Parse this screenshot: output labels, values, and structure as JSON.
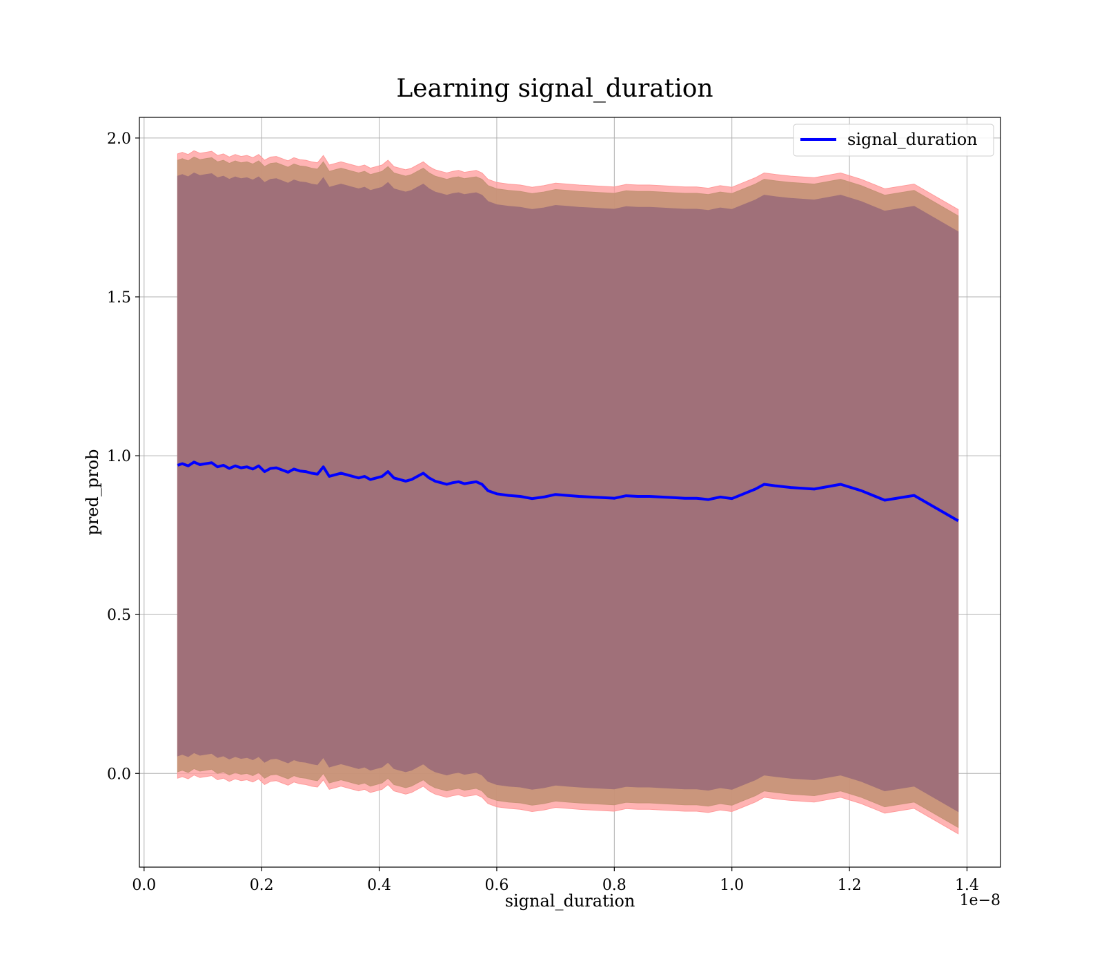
{
  "chart_data": {
    "type": "line",
    "title": "Learning signal_duration",
    "xlabel": "signal_duration",
    "ylabel": "pred_prob",
    "x_offset_label": "1e−8",
    "xlim": [
      -0.008,
      1.457
    ],
    "ylim": [
      -0.295,
      2.065
    ],
    "x_ticks": [
      0.0,
      0.2,
      0.4,
      0.6,
      0.8,
      1.0,
      1.2,
      1.4
    ],
    "x_tick_labels": [
      "0.0",
      "0.2",
      "0.4",
      "0.6",
      "0.8",
      "1.0",
      "1.2",
      "1.4"
    ],
    "y_ticks": [
      0.0,
      0.5,
      1.0,
      1.5,
      2.0
    ],
    "y_tick_labels": [
      "0.0",
      "0.5",
      "1.0",
      "1.5",
      "2.0"
    ],
    "grid": true,
    "legend_position": "top-right",
    "colors": {
      "line": "#0000ff",
      "outer_band": "#ff9a9a",
      "middle_band": "#c49275",
      "inner_band": "#a07079",
      "grid": "#b0b0b0",
      "axes": "#000000"
    },
    "series": [
      {
        "name": "signal_duration",
        "x": [
          0.057,
          0.065,
          0.075,
          0.085,
          0.095,
          0.105,
          0.115,
          0.125,
          0.135,
          0.145,
          0.155,
          0.165,
          0.175,
          0.185,
          0.195,
          0.205,
          0.215,
          0.225,
          0.235,
          0.245,
          0.255,
          0.265,
          0.275,
          0.285,
          0.295,
          0.305,
          0.315,
          0.325,
          0.335,
          0.345,
          0.355,
          0.365,
          0.375,
          0.385,
          0.395,
          0.405,
          0.415,
          0.425,
          0.435,
          0.445,
          0.455,
          0.465,
          0.475,
          0.485,
          0.495,
          0.505,
          0.515,
          0.525,
          0.535,
          0.545,
          0.555,
          0.565,
          0.575,
          0.585,
          0.6,
          0.62,
          0.64,
          0.66,
          0.68,
          0.7,
          0.72,
          0.74,
          0.76,
          0.78,
          0.8,
          0.82,
          0.84,
          0.86,
          0.88,
          0.9,
          0.92,
          0.94,
          0.96,
          0.98,
          1.0,
          1.02,
          1.04,
          1.055,
          1.075,
          1.1,
          1.14,
          1.185,
          1.22,
          1.26,
          1.31,
          1.385
        ],
        "values": [
          0.97,
          0.975,
          0.968,
          0.98,
          0.972,
          0.975,
          0.978,
          0.965,
          0.97,
          0.96,
          0.968,
          0.962,
          0.965,
          0.958,
          0.968,
          0.95,
          0.96,
          0.962,
          0.955,
          0.948,
          0.958,
          0.952,
          0.95,
          0.945,
          0.942,
          0.965,
          0.935,
          0.94,
          0.945,
          0.94,
          0.935,
          0.93,
          0.935,
          0.925,
          0.93,
          0.935,
          0.95,
          0.93,
          0.925,
          0.92,
          0.925,
          0.935,
          0.945,
          0.93,
          0.92,
          0.915,
          0.91,
          0.915,
          0.918,
          0.912,
          0.915,
          0.918,
          0.91,
          0.89,
          0.88,
          0.875,
          0.872,
          0.865,
          0.87,
          0.878,
          0.875,
          0.872,
          0.87,
          0.868,
          0.866,
          0.874,
          0.872,
          0.872,
          0.87,
          0.868,
          0.866,
          0.866,
          0.862,
          0.87,
          0.865,
          0.88,
          0.895,
          0.91,
          0.905,
          0.9,
          0.895,
          0.91,
          0.89,
          0.86,
          0.875,
          0.795
        ]
      }
    ],
    "bands": [
      {
        "lower_offset": -0.985,
        "upper_offset": 0.98
      },
      {
        "lower_offset": -0.965,
        "upper_offset": 0.96
      },
      {
        "lower_offset": -0.915,
        "upper_offset": 0.91
      }
    ]
  }
}
